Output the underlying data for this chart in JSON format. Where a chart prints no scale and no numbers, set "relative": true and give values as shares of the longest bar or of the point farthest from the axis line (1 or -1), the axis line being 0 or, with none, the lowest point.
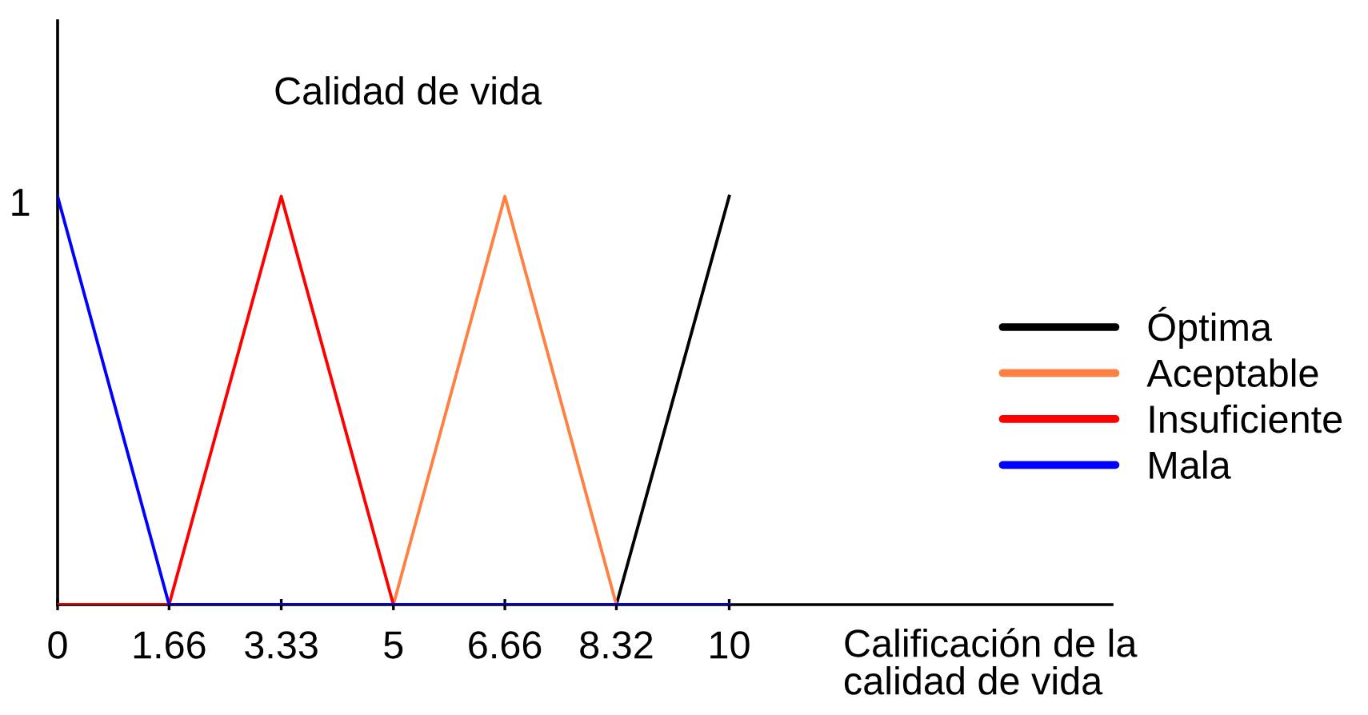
{
  "chart_data": {
    "type": "line",
    "title": "Calidad de vida",
    "xlabel": "Calificación de la\ncalidad de vida",
    "relative": true,
    "xlim": [
      0,
      15.7
    ],
    "xticks": [
      0,
      1.66,
      3.33,
      5,
      6.66,
      8.32,
      10
    ],
    "grid": false,
    "legend": "right",
    "annotations": [
      {
        "text": "1",
        "x": 0,
        "y": 1
      }
    ],
    "series": [
      {
        "name": "Óptima",
        "color": "#000000",
        "x": [
          0,
          8.32,
          10
        ],
        "values": [
          0,
          0,
          1
        ]
      },
      {
        "name": "Aceptable",
        "color": "#ff8040",
        "x": [
          0,
          5,
          6.66,
          8.32,
          10
        ],
        "values": [
          0,
          0,
          1,
          0,
          0
        ]
      },
      {
        "name": "Insuficiente",
        "color": "#ff0000",
        "x": [
          0,
          1.66,
          3.33,
          5,
          10
        ],
        "values": [
          0,
          0,
          1,
          0,
          0
        ]
      },
      {
        "name": "Mala",
        "color": "#0000ff",
        "x": [
          0,
          1.66,
          10
        ],
        "values": [
          1,
          0,
          0
        ]
      }
    ]
  }
}
